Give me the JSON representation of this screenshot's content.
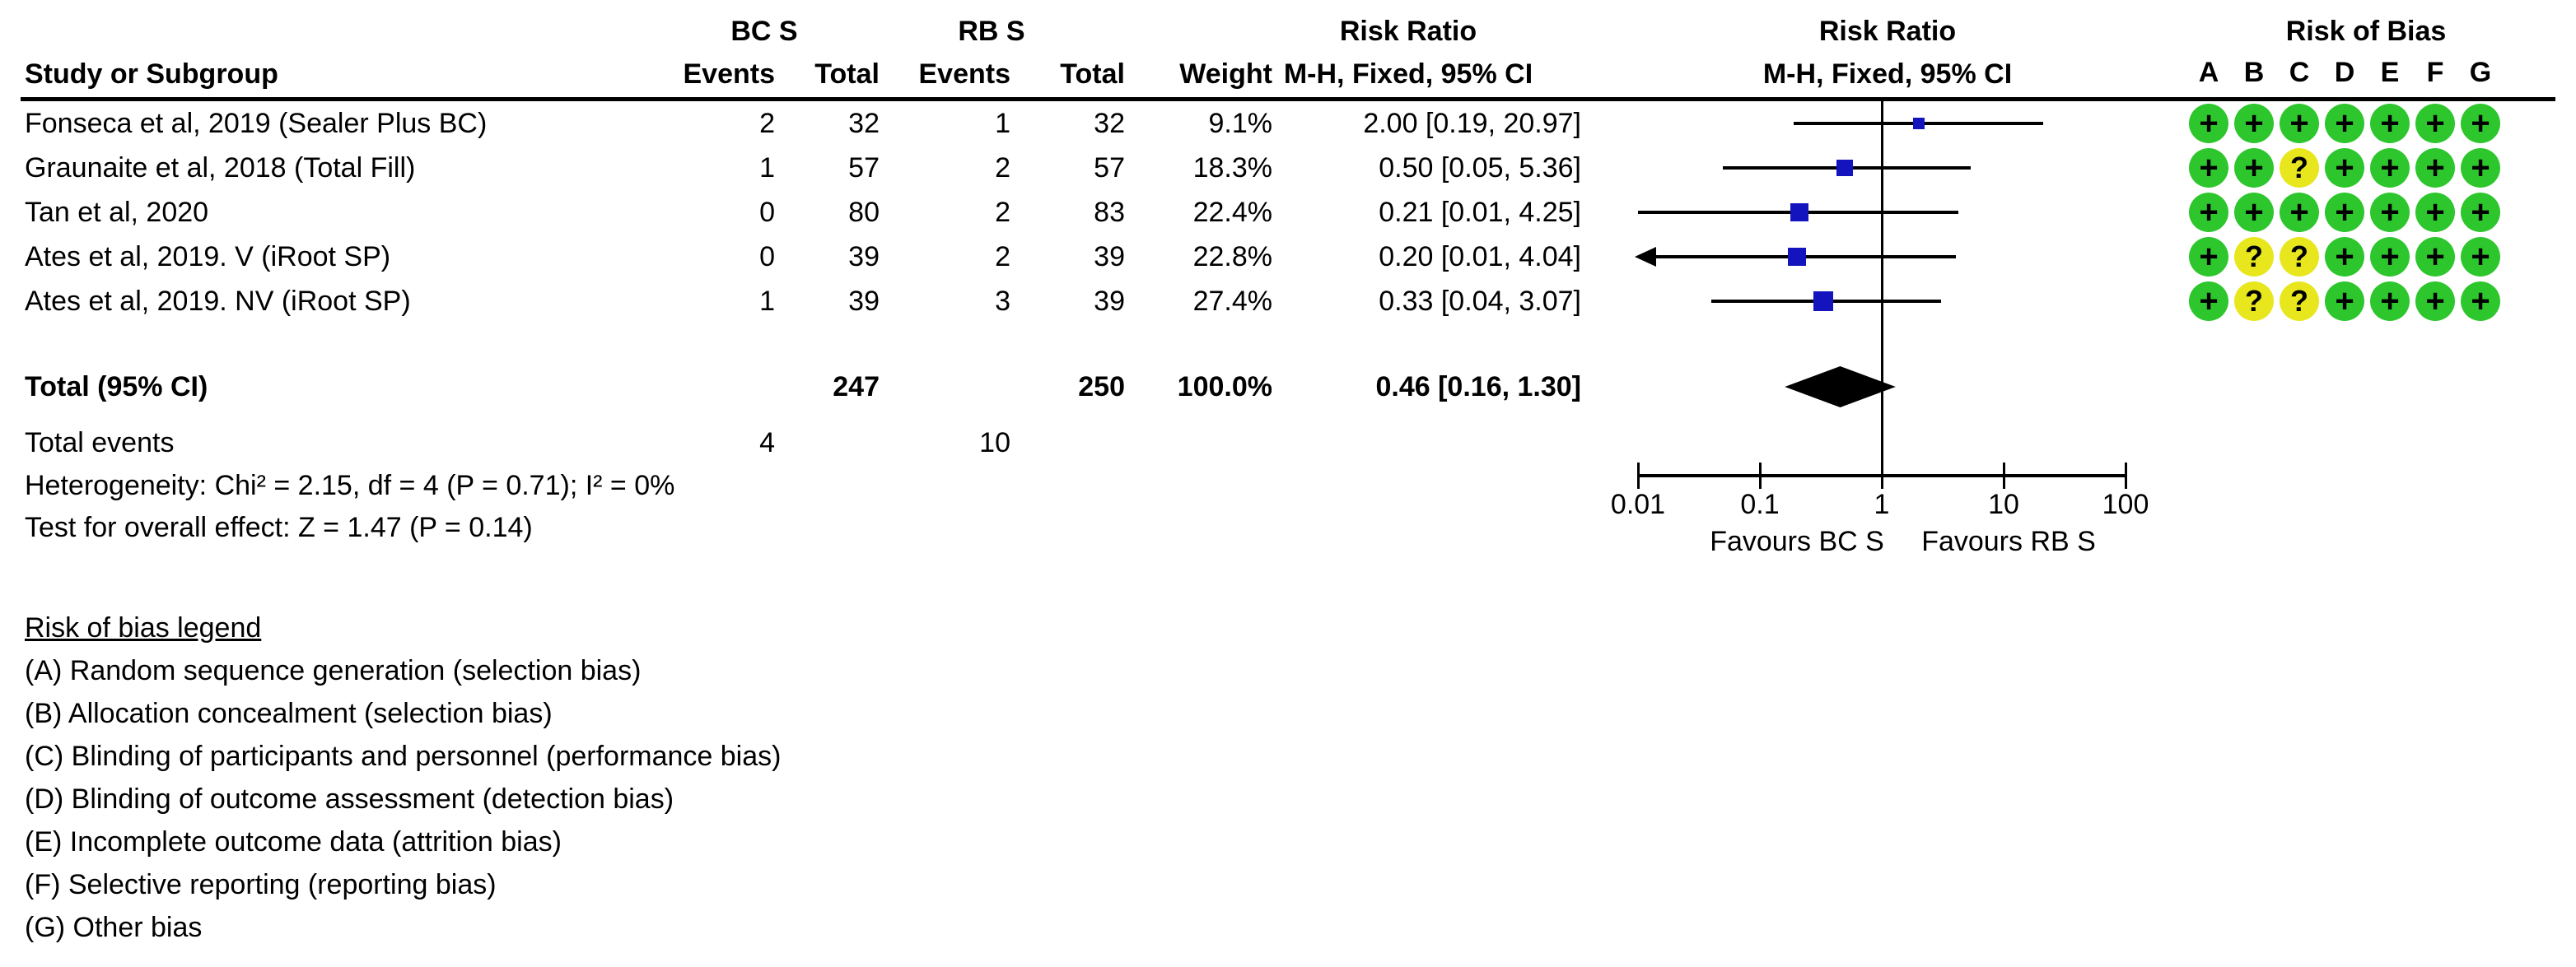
{
  "header": {
    "study": "Study or Subgroup",
    "group1": "BC S",
    "group2": "RB S",
    "events": "Events",
    "total": "Total",
    "events2": "Events",
    "total2": "Total",
    "weight": "Weight",
    "rr_title_text": "Risk Ratio",
    "rr_sub_text": "M-H, Fixed, 95% CI",
    "rr_title_plot": "Risk Ratio",
    "rr_sub_plot": "M-H, Fixed, 95% CI",
    "rob_title": "Risk of Bias"
  },
  "chart_data": {
    "type": "forest",
    "x_scale": "log10",
    "x_ticks": [
      "0.01",
      "0.1",
      "1",
      "10",
      "100"
    ],
    "x_tick_values": [
      0.01,
      0.1,
      1,
      10,
      100
    ],
    "x_range": [
      0.01,
      100
    ],
    "null_line": 1,
    "favours_left": "Favours BC S",
    "favours_right": "Favours RB S",
    "studies": [
      {
        "name": "Fonseca et al, 2019 (Sealer Plus BC)",
        "bc_events": "2",
        "bc_total": "32",
        "rb_events": "1",
        "rb_total": "32",
        "weight": "9.1%",
        "weight_pct": 9.1,
        "rr_label": "2.00 [0.19, 20.97]",
        "rr": 2.0,
        "ci_low": 0.19,
        "ci_high": 20.97,
        "arrow_low": false,
        "rob": [
          "+",
          "+",
          "+",
          "+",
          "+",
          "+",
          "+"
        ]
      },
      {
        "name": "Graunaite et al, 2018 (Total Fill)",
        "bc_events": "1",
        "bc_total": "57",
        "rb_events": "2",
        "rb_total": "57",
        "weight": "18.3%",
        "weight_pct": 18.3,
        "rr_label": "0.50 [0.05, 5.36]",
        "rr": 0.5,
        "ci_low": 0.05,
        "ci_high": 5.36,
        "arrow_low": false,
        "rob": [
          "+",
          "+",
          "?",
          "+",
          "+",
          "+",
          "+"
        ]
      },
      {
        "name": "Tan et al, 2020",
        "bc_events": "0",
        "bc_total": "80",
        "rb_events": "2",
        "rb_total": "83",
        "weight": "22.4%",
        "weight_pct": 22.4,
        "rr_label": "0.21 [0.01, 4.25]",
        "rr": 0.21,
        "ci_low": 0.01,
        "ci_high": 4.25,
        "arrow_low": false,
        "rob": [
          "+",
          "+",
          "+",
          "+",
          "+",
          "+",
          "+"
        ]
      },
      {
        "name": "Ates et al, 2019. V (iRoot SP)",
        "bc_events": "0",
        "bc_total": "39",
        "rb_events": "2",
        "rb_total": "39",
        "weight": "22.8%",
        "weight_pct": 22.8,
        "rr_label": "0.20 [0.01, 4.04]",
        "rr": 0.2,
        "ci_low": 0.01,
        "ci_high": 4.04,
        "arrow_low": true,
        "rob": [
          "+",
          "?",
          "?",
          "+",
          "+",
          "+",
          "+"
        ]
      },
      {
        "name": "Ates et al, 2019. NV (iRoot SP)",
        "bc_events": "1",
        "bc_total": "39",
        "rb_events": "3",
        "rb_total": "39",
        "weight": "27.4%",
        "weight_pct": 27.4,
        "rr_label": "0.33 [0.04, 3.07]",
        "rr": 0.33,
        "ci_low": 0.04,
        "ci_high": 3.07,
        "arrow_low": false,
        "rob": [
          "+",
          "?",
          "?",
          "+",
          "+",
          "+",
          "+"
        ]
      }
    ],
    "total": {
      "label": "Total (95% CI)",
      "bc_total": "247",
      "rb_total": "250",
      "weight": "100.0%",
      "rr_label": "0.46 [0.16, 1.30]",
      "rr": 0.46,
      "ci_low": 0.16,
      "ci_high": 1.3
    },
    "total_events": {
      "label": "Total events",
      "bc": "4",
      "rb": "10"
    },
    "heterogeneity": "Heterogeneity: Chi² = 2.15, df = 4 (P = 0.71); I² = 0%",
    "overall_effect": "Test for overall effect: Z = 1.47 (P = 0.14)"
  },
  "rob_legend": {
    "title": "Risk of bias legend",
    "letters": [
      "A",
      "B",
      "C",
      "D",
      "E",
      "F",
      "G"
    ],
    "items": [
      "(A) Random sequence generation (selection bias)",
      "(B) Allocation concealment (selection bias)",
      "(C) Blinding of participants and personnel (performance bias)",
      "(D) Blinding of outcome assessment (detection bias)",
      "(E) Incomplete outcome data (attrition bias)",
      "(F) Selective reporting (reporting bias)",
      "(G) Other bias"
    ]
  },
  "colors": {
    "marker_blue": "#1414be",
    "low_risk_green": "#2dc62d",
    "unclear_yellow": "#e8e71e",
    "line_black": "#000000"
  }
}
